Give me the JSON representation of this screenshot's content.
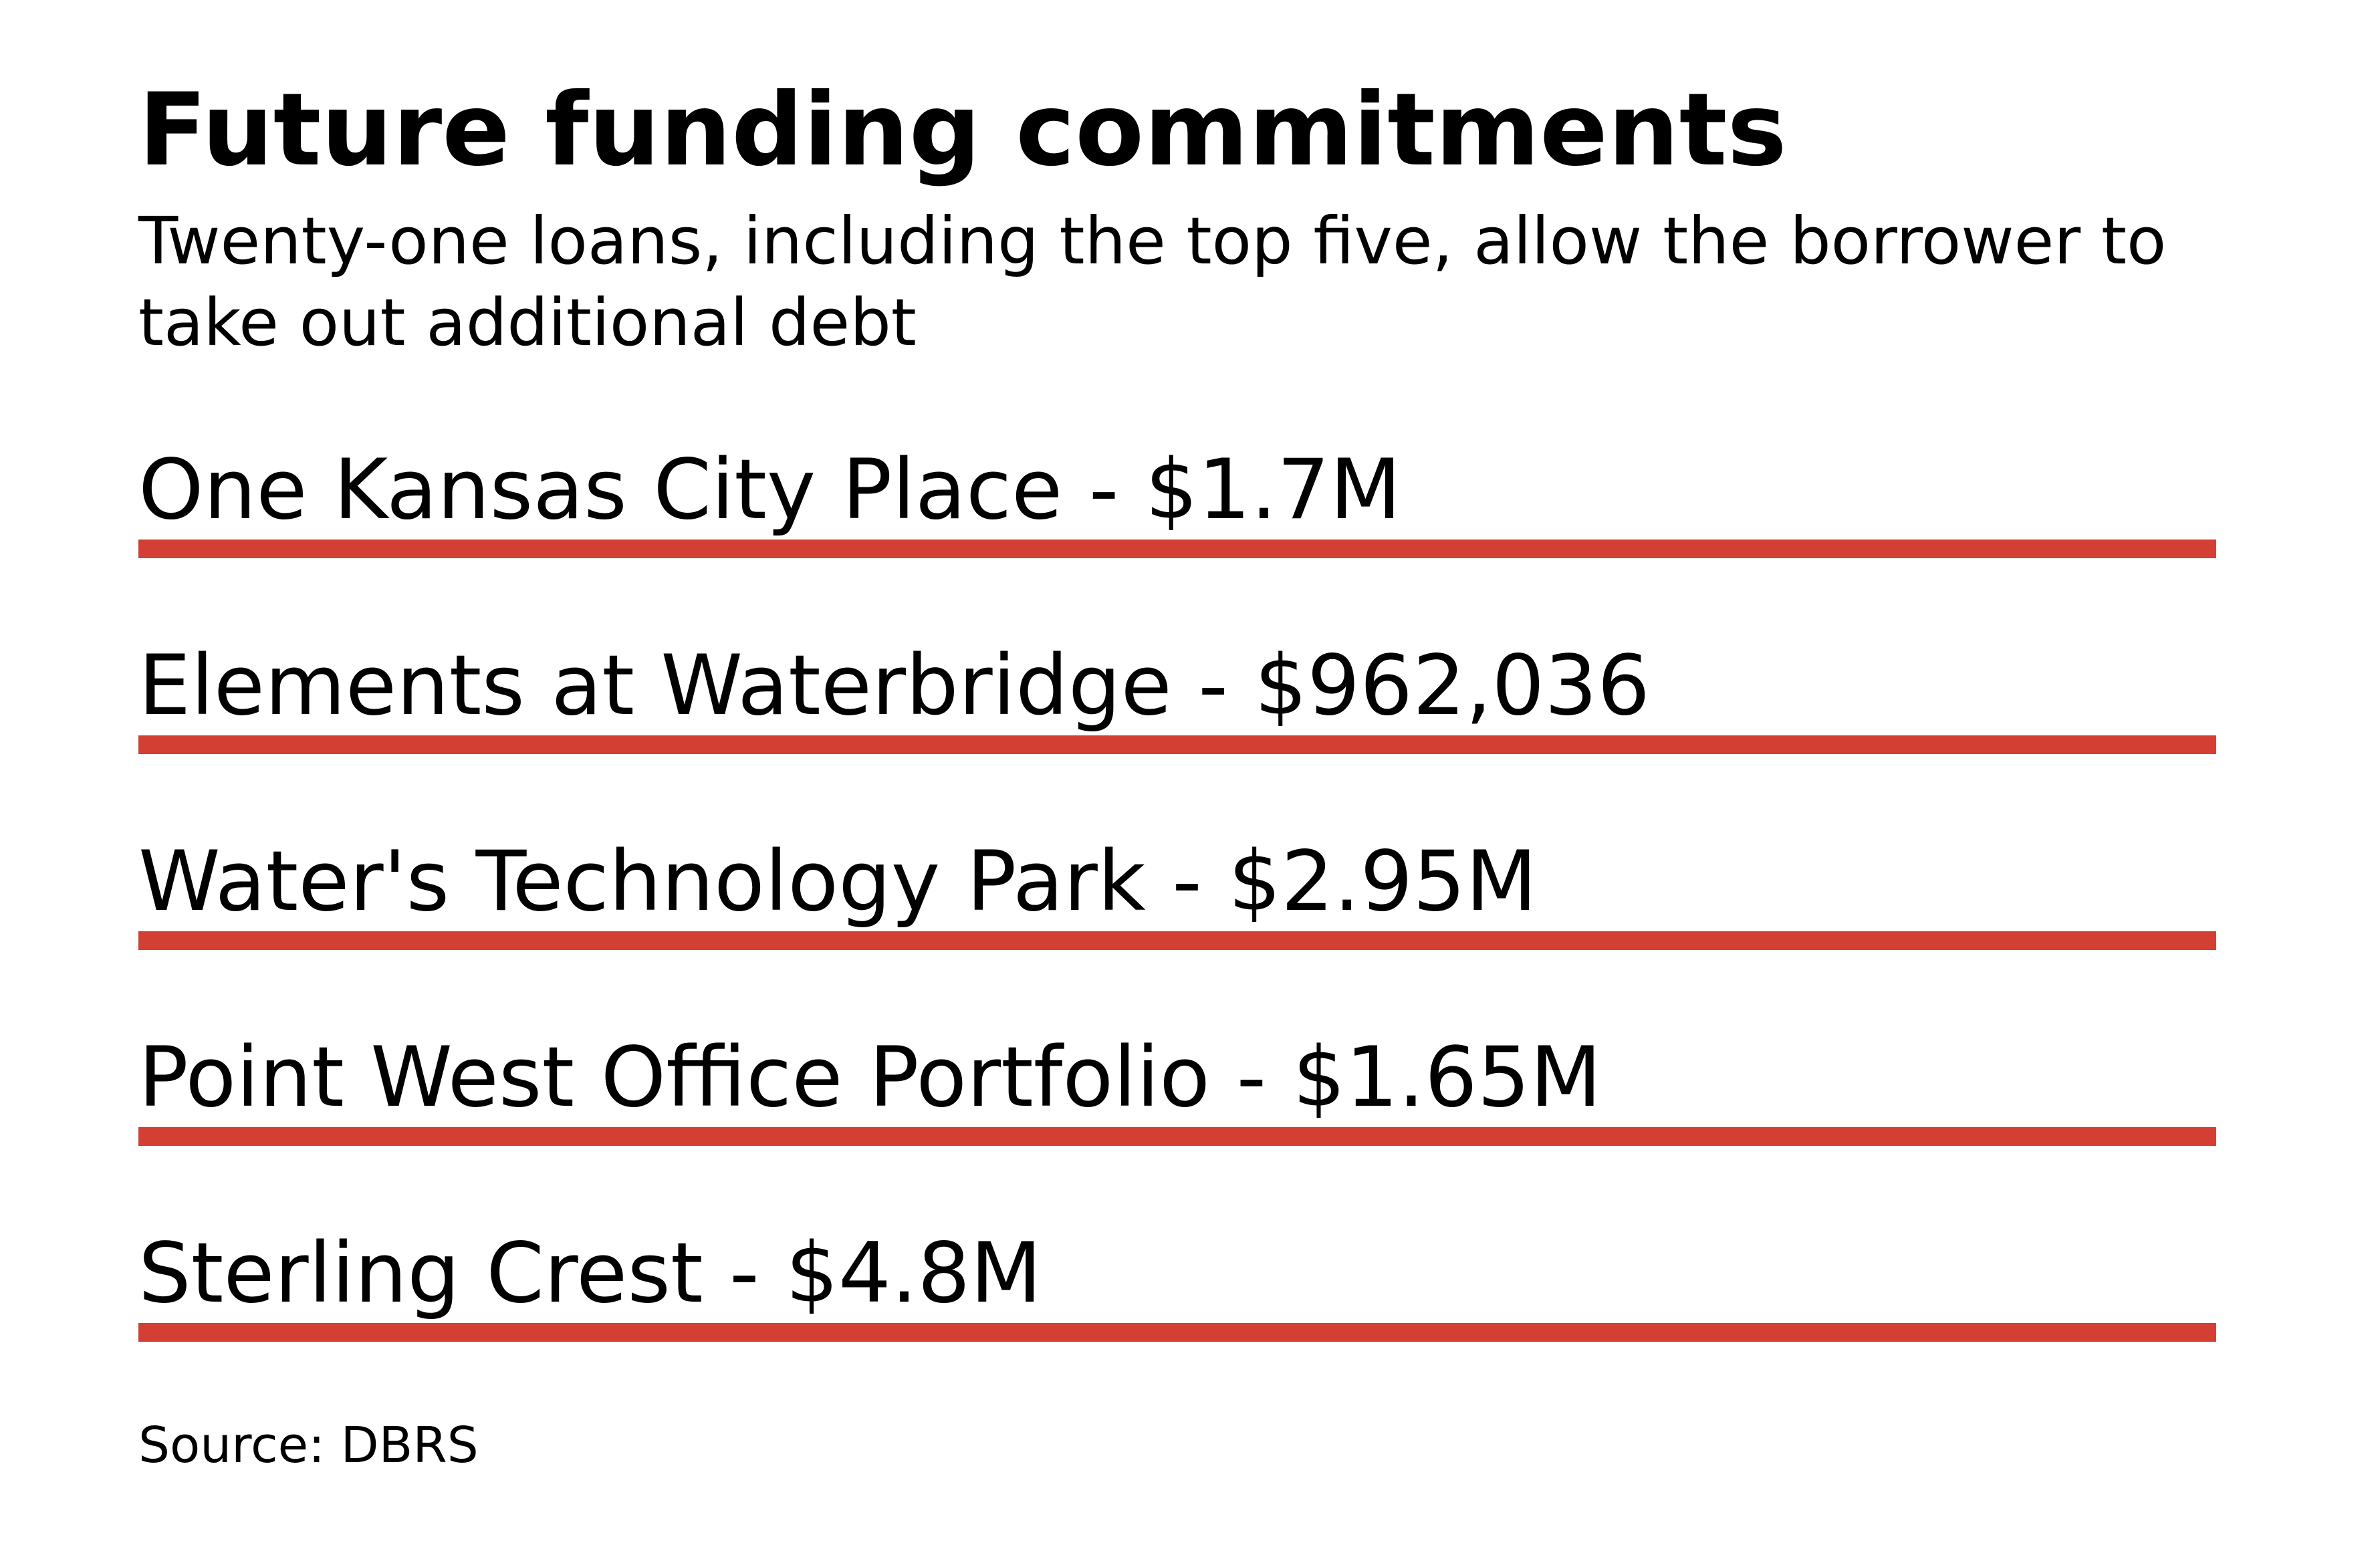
{
  "chart_data": {
    "type": "table",
    "title": "Future funding commitments",
    "subtitle": "Twenty-one loans, including the top five, allow the borrower to take out additional debt",
    "source": "Source: DBRS",
    "bar_color": "#d43f33",
    "items": [
      {
        "label": "One Kansas City Place - $1.7M"
      },
      {
        "label": "Elements at Waterbridge - $962,036"
      },
      {
        "label": "Water's Technology Park - $2.95M"
      },
      {
        "label": "Point West Office Portfolio - $1.65M"
      },
      {
        "label": "Sterling Crest - $4.8M"
      }
    ]
  }
}
